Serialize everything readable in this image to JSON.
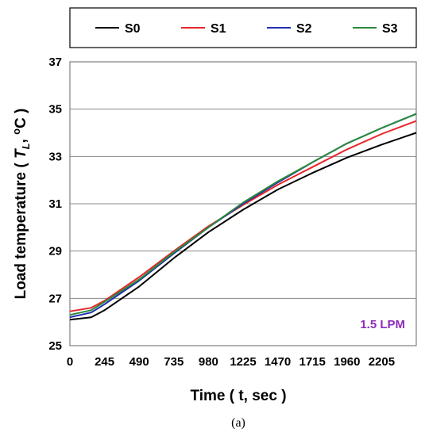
{
  "chart_data": {
    "type": "line",
    "title": "",
    "xlabel": "Time ( t, sec )",
    "ylabel_parts": [
      "Load temperature ( ",
      "T",
      "L",
      ", ",
      "o",
      "C )"
    ],
    "xlim": [
      0,
      2450
    ],
    "ylim": [
      25,
      37
    ],
    "x_ticks": [
      0,
      245,
      490,
      735,
      980,
      1225,
      1470,
      1715,
      1960,
      2205
    ],
    "y_ticks": [
      25,
      27,
      29,
      31,
      33,
      35,
      37
    ],
    "grid": "horizontal",
    "legend_position": "top",
    "annotation": "1.5 LPM",
    "caption": "(a)",
    "colors": {
      "S0": "#000000",
      "S1": "#e8262a",
      "S2": "#1f2fb0",
      "S3": "#2a8a3a",
      "annotation": "#8e2bbd"
    },
    "series": [
      {
        "name": "S0",
        "x": [
          0,
          150,
          245,
          490,
          735,
          980,
          1225,
          1470,
          1715,
          1960,
          2205,
          2450
        ],
        "y": [
          26.1,
          26.2,
          26.5,
          27.5,
          28.7,
          29.8,
          30.75,
          31.6,
          32.3,
          32.95,
          33.5,
          34.0
        ]
      },
      {
        "name": "S1",
        "x": [
          0,
          150,
          245,
          490,
          735,
          980,
          1225,
          1470,
          1715,
          1960,
          2205,
          2450
        ],
        "y": [
          26.45,
          26.6,
          26.9,
          27.9,
          29.0,
          30.05,
          30.95,
          31.8,
          32.55,
          33.3,
          33.95,
          34.5
        ]
      },
      {
        "name": "S2",
        "x": [
          0,
          150,
          245,
          490,
          735,
          980,
          1225,
          1470,
          1715,
          1960,
          2205,
          2450
        ],
        "y": [
          26.2,
          26.4,
          26.75,
          27.75,
          28.9,
          30.0,
          31.0,
          31.9,
          32.75,
          33.55,
          34.2,
          34.8
        ]
      },
      {
        "name": "S3",
        "x": [
          0,
          150,
          245,
          490,
          735,
          980,
          1225,
          1470,
          1715,
          1960,
          2205,
          2450
        ],
        "y": [
          26.3,
          26.5,
          26.85,
          27.8,
          28.95,
          30.0,
          31.05,
          31.95,
          32.75,
          33.55,
          34.2,
          34.8
        ]
      }
    ]
  }
}
